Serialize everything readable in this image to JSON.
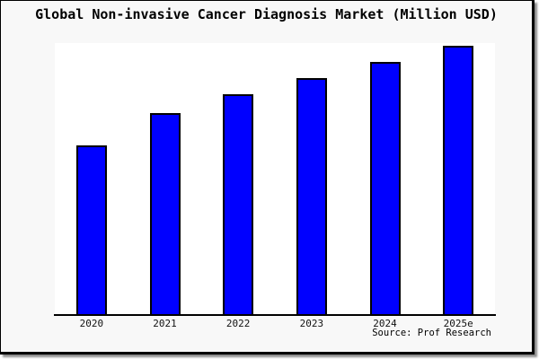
{
  "chart_data": {
    "type": "bar",
    "title": "Global Non-invasive Cancer Diagnosis Market (Million USD)",
    "categories": [
      "2020",
      "2021",
      "2022",
      "2023",
      "2024",
      "2025e"
    ],
    "values": [
      63,
      75,
      82,
      88,
      94,
      100
    ],
    "values_note": "y-axis not shown in image; values are relative bar heights as percent of the tallest bar (2025e = 100)",
    "xlabel": "",
    "ylabel": "",
    "ylim_relative": [
      0,
      101
    ],
    "grid": false,
    "legend": false,
    "bar_color": "#0000ff",
    "bar_border_color": "#000000",
    "plot_bg": "#ffffff",
    "figure_bg": "#f8f8f8",
    "frame_color": "#000000"
  },
  "source": {
    "label": "Source: Prof Research"
  }
}
